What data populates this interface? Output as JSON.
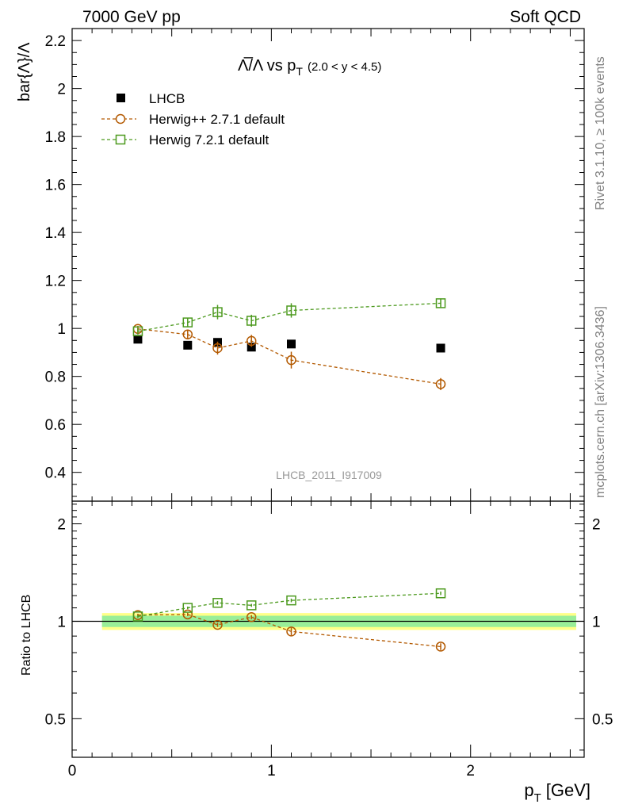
{
  "header": {
    "left": "7000 GeV pp",
    "right": "Soft QCD"
  },
  "side_labels": {
    "rivet": "Rivet 3.1.10, ≥ 100k events",
    "mcplots": "mcplots.cern.ch [arXiv:1306.3436]"
  },
  "chart_data": [
    {
      "type": "scatter",
      "title_main": "Λ̅/Λ vs p",
      "title_sub": "T",
      "title_cut": "(2.0 < y < 4.5)",
      "ylabel": "bar{Λ}/Λ",
      "xlabel": "p",
      "xlabel_sub": "T",
      "xlabel_unit": "[GeV]",
      "xlim": [
        0,
        2.57
      ],
      "ylim": [
        0.28,
        2.25
      ],
      "yticks": [
        "0.4",
        "0.6",
        "0.8",
        "1",
        "1.2",
        "1.4",
        "1.6",
        "1.8",
        "2",
        "2.2"
      ],
      "xticks": [
        "0",
        "1",
        "2"
      ],
      "analysis_label": "LHCB_2011_I917009",
      "legend_position": "top-left",
      "series": [
        {
          "name": "LHCB",
          "color": "#000000",
          "marker": "filled-square",
          "x": [
            0.33,
            0.58,
            0.73,
            0.9,
            1.1,
            1.85
          ],
          "y": [
            0.955,
            0.93,
            0.942,
            0.922,
            0.935,
            0.918
          ],
          "err": [
            0.01,
            0.01,
            0.01,
            0.01,
            0.01,
            0.01
          ]
        },
        {
          "name": "Herwig++ 2.7.1 default",
          "color": "#b35900",
          "marker": "open-circle",
          "x": [
            0.33,
            0.58,
            0.73,
            0.9,
            1.1,
            1.85
          ],
          "y": [
            0.998,
            0.975,
            0.918,
            0.948,
            0.868,
            0.768
          ],
          "err": [
            0.013,
            0.018,
            0.027,
            0.025,
            0.035,
            0.025
          ]
        },
        {
          "name": "Herwig 7.2.1 default",
          "color": "#4d9a1f",
          "marker": "open-square",
          "x": [
            0.33,
            0.58,
            0.73,
            0.9,
            1.1,
            1.85
          ],
          "y": [
            0.988,
            1.025,
            1.068,
            1.032,
            1.075,
            1.105
          ],
          "err": [
            0.013,
            0.02,
            0.03,
            0.025,
            0.03,
            0.02
          ]
        }
      ]
    },
    {
      "type": "scatter",
      "ylabel": "Ratio to LHCB",
      "ylim": [
        0.38,
        2.35
      ],
      "yticks": [
        "0.5",
        "1",
        "2"
      ],
      "band": {
        "x_range": [
          0.15,
          2.53
        ],
        "inner": [
          0.96,
          1.04
        ],
        "outer": [
          0.94,
          1.06
        ],
        "inner_color": "#99ee99",
        "outer_color": "#ffff88"
      },
      "series": [
        {
          "name": "Herwig++ 2.7.1 default",
          "color": "#b35900",
          "marker": "open-circle",
          "x": [
            0.33,
            0.58,
            0.73,
            0.9,
            1.1,
            1.85
          ],
          "y": [
            1.045,
            1.05,
            0.975,
            1.03,
            0.93,
            0.835
          ],
          "err": [
            0.01,
            0.012,
            0.015,
            0.015,
            0.025,
            0.02
          ]
        },
        {
          "name": "Herwig 7.2.1 default",
          "color": "#4d9a1f",
          "marker": "open-square",
          "x": [
            0.33,
            0.58,
            0.73,
            0.9,
            1.1,
            1.85
          ],
          "y": [
            1.035,
            1.1,
            1.14,
            1.12,
            1.16,
            1.22
          ],
          "err": [
            0.01,
            0.01,
            0.015,
            0.012,
            0.015,
            0.015
          ]
        }
      ]
    }
  ]
}
